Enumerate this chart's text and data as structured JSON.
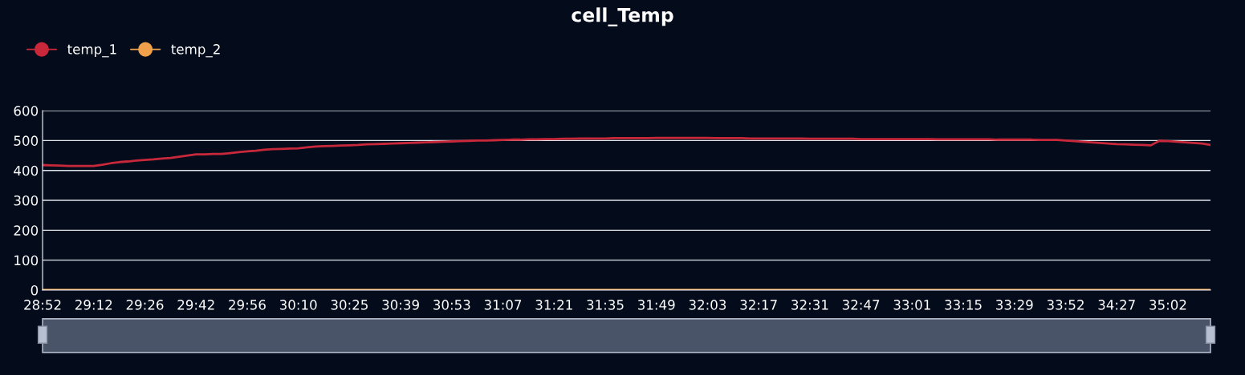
{
  "chart_data": {
    "type": "line",
    "title": "cell_Temp",
    "categories": [
      "28:52",
      null,
      null,
      null,
      null,
      null,
      "29:12",
      null,
      null,
      null,
      null,
      null,
      "29:26",
      null,
      null,
      null,
      null,
      null,
      "29:42",
      null,
      null,
      null,
      null,
      null,
      "29:56",
      null,
      null,
      null,
      null,
      null,
      "30:10",
      null,
      null,
      null,
      null,
      null,
      "30:25",
      null,
      null,
      null,
      null,
      null,
      "30:39",
      null,
      null,
      null,
      null,
      null,
      "30:53",
      null,
      null,
      null,
      null,
      null,
      "31:07",
      null,
      null,
      null,
      null,
      null,
      "31:21",
      null,
      null,
      null,
      null,
      null,
      "31:35",
      null,
      null,
      null,
      null,
      null,
      "31:49",
      null,
      null,
      null,
      null,
      null,
      "32:03",
      null,
      null,
      null,
      null,
      null,
      "32:17",
      null,
      null,
      null,
      null,
      null,
      "32:31",
      null,
      null,
      null,
      null,
      null,
      "32:47",
      null,
      null,
      null,
      null,
      null,
      "33:01",
      null,
      null,
      null,
      null,
      null,
      "33:15",
      null,
      null,
      null,
      null,
      null,
      "33:29",
      null,
      null,
      null,
      null,
      null,
      "33:52",
      null,
      null,
      null,
      null,
      null,
      "34:27",
      null,
      null,
      null,
      null,
      null,
      "35:02",
      null,
      null,
      null,
      null,
      null
    ],
    "series": [
      {
        "name": "temp_1",
        "color": "#c8283a",
        "values": [
          418,
          417,
          416,
          415,
          415,
          415,
          415,
          419,
          424,
          428,
          430,
          433,
          435,
          437,
          440,
          442,
          446,
          450,
          454,
          454,
          455,
          455,
          458,
          461,
          464,
          466,
          469,
          471,
          472,
          473,
          474,
          477,
          480,
          481,
          482,
          483,
          484,
          485,
          487,
          488,
          489,
          490,
          491,
          492,
          493,
          494,
          495,
          496,
          497,
          498,
          499,
          500,
          500,
          501,
          502,
          503,
          503,
          504,
          504,
          505,
          505,
          506,
          506,
          507,
          507,
          507,
          507,
          508,
          508,
          508,
          508,
          508,
          509,
          509,
          509,
          509,
          509,
          509,
          509,
          508,
          508,
          508,
          508,
          507,
          507,
          507,
          507,
          507,
          507,
          507,
          506,
          506,
          506,
          506,
          506,
          506,
          505,
          505,
          505,
          505,
          505,
          505,
          505,
          505,
          505,
          504,
          504,
          504,
          504,
          504,
          504,
          504,
          503,
          503,
          503,
          503,
          503,
          502,
          502,
          502,
          500,
          498,
          496,
          494,
          492,
          490,
          488,
          487,
          486,
          485,
          484,
          499,
          498,
          496,
          494,
          492,
          490,
          485
        ]
      },
      {
        "name": "temp_2",
        "color": "#f0a04b",
        "values": [
          0,
          0,
          0,
          0,
          0,
          0,
          0,
          0,
          0,
          0,
          0,
          0,
          0,
          0,
          0,
          0,
          0,
          0,
          0,
          0,
          0,
          0,
          0,
          0,
          0,
          0,
          0,
          0,
          0,
          0,
          0,
          0,
          0,
          0,
          0,
          0,
          0,
          0,
          0,
          0,
          0,
          0,
          0,
          0,
          0,
          0,
          0,
          0,
          0,
          0,
          0,
          0,
          0,
          0,
          0,
          0,
          0,
          0,
          0,
          0,
          0,
          0,
          0,
          0,
          0,
          0,
          0,
          0,
          0,
          0,
          0,
          0,
          0,
          0,
          0,
          0,
          0,
          0,
          0,
          0,
          0,
          0,
          0,
          0,
          0,
          0,
          0,
          0,
          0,
          0,
          0,
          0,
          0,
          0,
          0,
          0,
          0,
          0,
          0,
          0,
          0,
          0,
          0,
          0,
          0,
          0,
          0,
          0,
          0,
          0,
          0,
          0,
          0,
          0,
          0,
          0,
          0,
          0,
          0,
          0,
          0,
          0,
          0,
          0,
          0,
          0,
          0,
          0,
          0,
          0,
          0,
          0,
          0,
          0,
          0,
          0,
          0,
          0
        ]
      }
    ],
    "ylim": [
      0,
      600
    ],
    "yticks": [
      0,
      100,
      200,
      300,
      400,
      500,
      600
    ],
    "grid": "y",
    "legend": "top left"
  }
}
